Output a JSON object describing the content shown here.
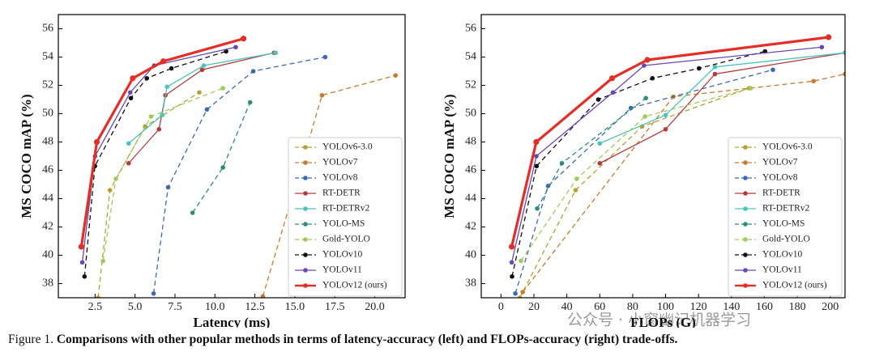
{
  "chart_data": [
    {
      "type": "line",
      "xlabel": "Latency (ms)",
      "ylabel": "MS COCO mAP (%)",
      "xlim": [
        0.2,
        21.9
      ],
      "ylim": [
        37,
        57
      ],
      "xticks": [
        2.5,
        {
          "value": 5,
          "label": "5.0"
        },
        7.5,
        {
          "value": 10,
          "label": "10.0"
        },
        12.5,
        {
          "value": 15,
          "label": "15.0"
        },
        17.5,
        {
          "value": 20,
          "label": "20.0"
        }
      ],
      "yticks": [
        38,
        40,
        42,
        44,
        46,
        48,
        50,
        52,
        54,
        56
      ],
      "legend": "lower right",
      "series": [
        {
          "name": "YOLOv6-3.0",
          "color": "#b5a032",
          "dashed": true,
          "x": [
            2.69,
            3.43,
            5.63,
            9.02
          ],
          "values": [
            37.0,
            44.6,
            49.1,
            51.5
          ]
        },
        {
          "name": "YOLOv7",
          "color": "#c67a2c",
          "dashed": true,
          "x": [
            13.0,
            16.7,
            21.3
          ],
          "values": [
            37.1,
            51.3,
            52.7
          ]
        },
        {
          "name": "YOLOv8",
          "color": "#3d68b0",
          "dashed": true,
          "x": [
            6.16,
            7.07,
            9.5,
            12.4,
            16.9
          ],
          "values": [
            37.3,
            44.8,
            50.3,
            53.0,
            54.0
          ]
        },
        {
          "name": "RT-DETR",
          "color": "#b73a3a",
          "dashed": false,
          "x": [
            4.6,
            6.5,
            6.9,
            9.2,
            13.7
          ],
          "values": [
            46.5,
            48.9,
            51.3,
            53.1,
            54.3
          ]
        },
        {
          "name": "RT-DETRv2",
          "color": "#4cc3c0",
          "dashed": false,
          "x": [
            4.6,
            6.7,
            7.0,
            9.3,
            13.8
          ],
          "values": [
            47.9,
            49.9,
            51.9,
            53.4,
            54.3
          ]
        },
        {
          "name": "YOLO-MS",
          "color": "#2a8c7a",
          "dashed": true,
          "x": [
            8.6,
            10.5,
            12.2
          ],
          "values": [
            43.0,
            46.2,
            50.8
          ]
        },
        {
          "name": "Gold-YOLO",
          "color": "#9ccc5a",
          "dashed": true,
          "x": [
            3.0,
            3.8,
            6.0,
            10.5
          ],
          "values": [
            39.6,
            45.4,
            49.8,
            51.8
          ]
        },
        {
          "name": "YOLOv10",
          "color": "#111111",
          "dashed": true,
          "x": [
            1.84,
            2.49,
            4.74,
            5.74,
            7.28,
            10.7
          ],
          "values": [
            38.5,
            46.3,
            51.1,
            52.5,
            53.2,
            54.4
          ]
        },
        {
          "name": "YOLOv11",
          "color": "#6a48b0",
          "dashed": false,
          "x": [
            1.7,
            2.5,
            4.7,
            6.2,
            11.3
          ],
          "values": [
            39.5,
            47.0,
            51.5,
            53.4,
            54.7
          ]
        },
        {
          "name": "YOLOv12 (ours)",
          "color": "#e42d24",
          "dashed": false,
          "x": [
            1.64,
            2.61,
            4.86,
            6.77,
            11.79
          ],
          "values": [
            40.6,
            48.0,
            52.5,
            53.7,
            55.3
          ]
        }
      ]
    },
    {
      "type": "line",
      "xlabel": "FLOPs (G)",
      "ylabel": "MS COCO mAP (%)",
      "xlim": [
        -12,
        209
      ],
      "ylim": [
        37,
        57
      ],
      "xticks": [
        0,
        20,
        40,
        60,
        80,
        100,
        120,
        140,
        160,
        180,
        200
      ],
      "yticks": [
        38,
        40,
        42,
        44,
        46,
        48,
        50,
        52,
        54,
        56
      ],
      "legend": "lower right",
      "series": [
        {
          "name": "YOLOv6-3.0",
          "color": "#b5a032",
          "dashed": true,
          "x": [
            11.4,
            45.3,
            85.8,
            150.7
          ],
          "values": [
            37.0,
            44.6,
            49.1,
            51.8
          ]
        },
        {
          "name": "YOLOv7",
          "color": "#c67a2c",
          "dashed": true,
          "x": [
            13.2,
            104.7,
            189.9,
            209
          ],
          "values": [
            37.4,
            51.2,
            52.3,
            52.8
          ]
        },
        {
          "name": "YOLOv8",
          "color": "#3d68b0",
          "dashed": true,
          "x": [
            8.7,
            28.6,
            78.9,
            165.2
          ],
          "values": [
            37.3,
            44.9,
            50.4,
            53.1
          ]
        },
        {
          "name": "RT-DETR",
          "color": "#b73a3a",
          "dashed": false,
          "x": [
            60,
            100,
            130,
            209
          ],
          "values": [
            46.5,
            48.9,
            52.8,
            54.3
          ]
        },
        {
          "name": "RT-DETRv2",
          "color": "#4cc3c0",
          "dashed": false,
          "x": [
            60,
            100,
            130,
            209
          ],
          "values": [
            47.9,
            49.9,
            53.3,
            54.3
          ]
        },
        {
          "name": "YOLO-MS",
          "color": "#2a8c7a",
          "dashed": true,
          "x": [
            22,
            37,
            88
          ],
          "values": [
            43.3,
            46.5,
            51.1
          ]
        },
        {
          "name": "Gold-YOLO",
          "color": "#9ccc5a",
          "dashed": true,
          "x": [
            12.1,
            46,
            87.5,
            151.7
          ],
          "values": [
            39.6,
            45.4,
            49.8,
            51.8
          ]
        },
        {
          "name": "YOLOv10",
          "color": "#111111",
          "dashed": true,
          "x": [
            6.7,
            21.6,
            59.1,
            92,
            120.3,
            160.4
          ],
          "values": [
            38.5,
            46.3,
            51.0,
            52.5,
            53.2,
            54.4
          ]
        },
        {
          "name": "YOLOv11",
          "color": "#6a48b0",
          "dashed": false,
          "x": [
            6.5,
            21.5,
            68,
            86.9,
            194.9
          ],
          "values": [
            39.5,
            47.0,
            51.5,
            53.4,
            54.7
          ]
        },
        {
          "name": "YOLOv12 (ours)",
          "color": "#e42d24",
          "dashed": false,
          "x": [
            6.5,
            21.4,
            67.5,
            88.9,
            199
          ],
          "values": [
            40.6,
            48.0,
            52.5,
            53.8,
            55.4
          ]
        }
      ]
    }
  ],
  "watermark": "公众号 · 小窗幽记机器学习",
  "caption": {
    "label": "Figure 1.",
    "text": "Comparisons with other popular methods in terms of latency-accuracy (left) and FLOPs-accuracy (right) trade-offs."
  }
}
